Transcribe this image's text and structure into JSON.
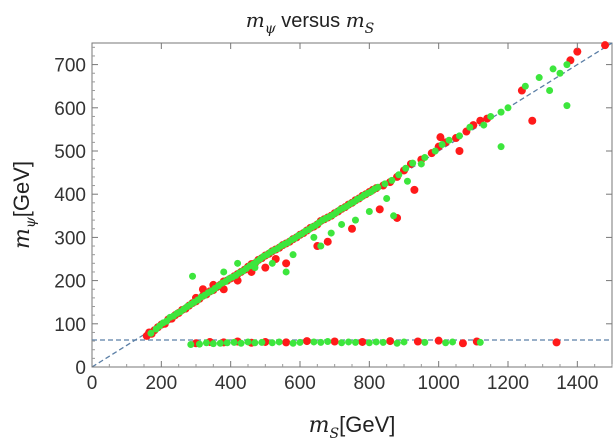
{
  "chart_data": {
    "type": "scatter",
    "title": {
      "m": "m",
      "sub_psi": "ψ",
      "mid": " versus ",
      "m2": "m",
      "sub_s": "S"
    },
    "xlabel": {
      "m": "m",
      "sub": "S",
      "rest": "[GeV]"
    },
    "ylabel": {
      "m": "m",
      "sub": "ψ",
      "rest": "[GeV]"
    },
    "xlim": [
      0,
      1500
    ],
    "ylim": [
      0,
      750
    ],
    "x_ticks": [
      0,
      200,
      400,
      600,
      800,
      1000,
      1200,
      1400
    ],
    "x_tick_labels": [
      "0",
      "200",
      "400",
      "600",
      "800",
      "1000",
      "1200",
      "1400"
    ],
    "y_ticks": [
      0,
      100,
      200,
      300,
      400,
      500,
      600,
      700
    ],
    "y_tick_labels": [
      "0",
      "100",
      "200",
      "300",
      "400",
      "500",
      "600",
      "700"
    ],
    "reference_lines": [
      {
        "name": "diagonal",
        "points": [
          [
            0,
            0
          ],
          [
            1500,
            750
          ]
        ],
        "style": "dashed",
        "color": "#5b7fa6"
      },
      {
        "name": "horizontal",
        "points": [
          [
            0,
            62.5
          ],
          [
            1500,
            62.5
          ]
        ],
        "style": "dashed",
        "color": "#5b7fa6"
      }
    ],
    "series": [
      {
        "name": "red",
        "color": "#ff1a1a",
        "points": [
          [
            158,
            72
          ],
          [
            165,
            80
          ],
          [
            172,
            77
          ],
          [
            180,
            85
          ],
          [
            190,
            92
          ],
          [
            200,
            98
          ],
          [
            210,
            100
          ],
          [
            220,
            110
          ],
          [
            230,
            112
          ],
          [
            240,
            120
          ],
          [
            250,
            125
          ],
          [
            260,
            132
          ],
          [
            270,
            135
          ],
          [
            280,
            142
          ],
          [
            290,
            148
          ],
          [
            300,
            152
          ],
          [
            310,
            158
          ],
          [
            320,
            165
          ],
          [
            330,
            168
          ],
          [
            340,
            175
          ],
          [
            350,
            178
          ],
          [
            360,
            185
          ],
          [
            370,
            190
          ],
          [
            380,
            198
          ],
          [
            390,
            200
          ],
          [
            400,
            205
          ],
          [
            410,
            210
          ],
          [
            420,
            215
          ],
          [
            430,
            220
          ],
          [
            440,
            225
          ],
          [
            450,
            232
          ],
          [
            460,
            238
          ],
          [
            470,
            240
          ],
          [
            480,
            248
          ],
          [
            490,
            252
          ],
          [
            500,
            258
          ],
          [
            510,
            262
          ],
          [
            520,
            268
          ],
          [
            530,
            272
          ],
          [
            540,
            276
          ],
          [
            550,
            282
          ],
          [
            560,
            286
          ],
          [
            570,
            290
          ],
          [
            580,
            296
          ],
          [
            590,
            300
          ],
          [
            600,
            306
          ],
          [
            610,
            310
          ],
          [
            620,
            316
          ],
          [
            630,
            322
          ],
          [
            640,
            325
          ],
          [
            650,
            330
          ],
          [
            660,
            338
          ],
          [
            670,
            342
          ],
          [
            680,
            346
          ],
          [
            690,
            350
          ],
          [
            700,
            356
          ],
          [
            710,
            360
          ],
          [
            720,
            366
          ],
          [
            730,
            370
          ],
          [
            740,
            376
          ],
          [
            750,
            380
          ],
          [
            760,
            386
          ],
          [
            770,
            390
          ],
          [
            780,
            396
          ],
          [
            790,
            400
          ],
          [
            800,
            405
          ],
          [
            810,
            410
          ],
          [
            820,
            414
          ],
          [
            840,
            420
          ],
          [
            860,
            428
          ],
          [
            880,
            440
          ],
          [
            900,
            455
          ],
          [
            920,
            470
          ],
          [
            950,
            480
          ],
          [
            980,
            495
          ],
          [
            1000,
            510
          ],
          [
            1005,
            532
          ],
          [
            1020,
            520
          ],
          [
            1050,
            530
          ],
          [
            1080,
            545
          ],
          [
            1100,
            560
          ],
          [
            1120,
            570
          ],
          [
            1240,
            640
          ],
          [
            1270,
            570
          ],
          [
            1380,
            710
          ],
          [
            1400,
            730
          ],
          [
            1480,
            745
          ],
          [
            300,
            160
          ],
          [
            320,
            180
          ],
          [
            350,
            190
          ],
          [
            380,
            180
          ],
          [
            420,
            200
          ],
          [
            460,
            220
          ],
          [
            500,
            230
          ],
          [
            530,
            250
          ],
          [
            560,
            240
          ],
          [
            650,
            280
          ],
          [
            680,
            290
          ],
          [
            750,
            320
          ],
          [
            830,
            365
          ],
          [
            880,
            345
          ],
          [
            930,
            410
          ],
          [
            1140,
            575
          ],
          [
            1060,
            500
          ],
          [
            300,
            55
          ],
          [
            340,
            58
          ],
          [
            380,
            57
          ],
          [
            420,
            59
          ],
          [
            460,
            56
          ],
          [
            500,
            58
          ],
          [
            560,
            57
          ],
          [
            620,
            60
          ],
          [
            700,
            59
          ],
          [
            780,
            58
          ],
          [
            860,
            60
          ],
          [
            940,
            59
          ],
          [
            1000,
            61
          ],
          [
            1070,
            55
          ],
          [
            1110,
            59
          ],
          [
            1340,
            57
          ]
        ]
      },
      {
        "name": "green",
        "color": "#3de63d",
        "points": [
          [
            170,
            78
          ],
          [
            185,
            88
          ],
          [
            195,
            95
          ],
          [
            205,
            102
          ],
          [
            215,
            106
          ],
          [
            225,
            115
          ],
          [
            235,
            118
          ],
          [
            245,
            124
          ],
          [
            255,
            128
          ],
          [
            265,
            134
          ],
          [
            275,
            140
          ],
          [
            285,
            145
          ],
          [
            295,
            150
          ],
          [
            305,
            155
          ],
          [
            315,
            162
          ],
          [
            325,
            166
          ],
          [
            335,
            172
          ],
          [
            345,
            176
          ],
          [
            355,
            182
          ],
          [
            365,
            188
          ],
          [
            375,
            194
          ],
          [
            385,
            198
          ],
          [
            395,
            204
          ],
          [
            405,
            208
          ],
          [
            415,
            212
          ],
          [
            425,
            218
          ],
          [
            435,
            222
          ],
          [
            445,
            228
          ],
          [
            455,
            234
          ],
          [
            465,
            238
          ],
          [
            475,
            244
          ],
          [
            485,
            250
          ],
          [
            495,
            256
          ],
          [
            505,
            260
          ],
          [
            515,
            266
          ],
          [
            525,
            270
          ],
          [
            535,
            274
          ],
          [
            545,
            280
          ],
          [
            555,
            284
          ],
          [
            565,
            288
          ],
          [
            575,
            294
          ],
          [
            585,
            298
          ],
          [
            595,
            304
          ],
          [
            605,
            308
          ],
          [
            615,
            314
          ],
          [
            625,
            318
          ],
          [
            635,
            324
          ],
          [
            645,
            328
          ],
          [
            655,
            334
          ],
          [
            665,
            340
          ],
          [
            675,
            344
          ],
          [
            685,
            348
          ],
          [
            695,
            352
          ],
          [
            705,
            358
          ],
          [
            715,
            364
          ],
          [
            725,
            368
          ],
          [
            735,
            372
          ],
          [
            745,
            378
          ],
          [
            755,
            382
          ],
          [
            765,
            388
          ],
          [
            775,
            392
          ],
          [
            785,
            398
          ],
          [
            795,
            402
          ],
          [
            805,
            406
          ],
          [
            815,
            412
          ],
          [
            825,
            416
          ],
          [
            845,
            424
          ],
          [
            865,
            432
          ],
          [
            885,
            445
          ],
          [
            905,
            460
          ],
          [
            925,
            472
          ],
          [
            960,
            485
          ],
          [
            990,
            500
          ],
          [
            1010,
            515
          ],
          [
            1030,
            525
          ],
          [
            1060,
            535
          ],
          [
            1090,
            555
          ],
          [
            1130,
            560
          ],
          [
            1150,
            580
          ],
          [
            1180,
            590
          ],
          [
            1200,
            600
          ],
          [
            1250,
            650
          ],
          [
            1290,
            670
          ],
          [
            1330,
            690
          ],
          [
            1350,
            680
          ],
          [
            1370,
            700
          ],
          [
            290,
            210
          ],
          [
            380,
            220
          ],
          [
            420,
            240
          ],
          [
            470,
            230
          ],
          [
            520,
            240
          ],
          [
            560,
            220
          ],
          [
            580,
            260
          ],
          [
            640,
            300
          ],
          [
            660,
            280
          ],
          [
            690,
            310
          ],
          [
            720,
            330
          ],
          [
            760,
            340
          ],
          [
            800,
            360
          ],
          [
            850,
            390
          ],
          [
            870,
            350
          ],
          [
            910,
            430
          ],
          [
            950,
            470
          ],
          [
            1180,
            510
          ],
          [
            1370,
            605
          ],
          [
            1320,
            640
          ],
          [
            285,
            52
          ],
          [
            310,
            53
          ],
          [
            330,
            56
          ],
          [
            350,
            54
          ],
          [
            370,
            55
          ],
          [
            390,
            56
          ],
          [
            410,
            57
          ],
          [
            430,
            55
          ],
          [
            450,
            58
          ],
          [
            470,
            56
          ],
          [
            490,
            57
          ],
          [
            520,
            56
          ],
          [
            540,
            58
          ],
          [
            580,
            55
          ],
          [
            600,
            57
          ],
          [
            640,
            58
          ],
          [
            660,
            57
          ],
          [
            680,
            59
          ],
          [
            720,
            56
          ],
          [
            740,
            58
          ],
          [
            760,
            57
          ],
          [
            800,
            56
          ],
          [
            820,
            58
          ],
          [
            840,
            57
          ],
          [
            880,
            55
          ],
          [
            900,
            58
          ],
          [
            960,
            57
          ],
          [
            1020,
            56
          ],
          [
            1040,
            58
          ],
          [
            1120,
            57
          ]
        ]
      }
    ]
  }
}
